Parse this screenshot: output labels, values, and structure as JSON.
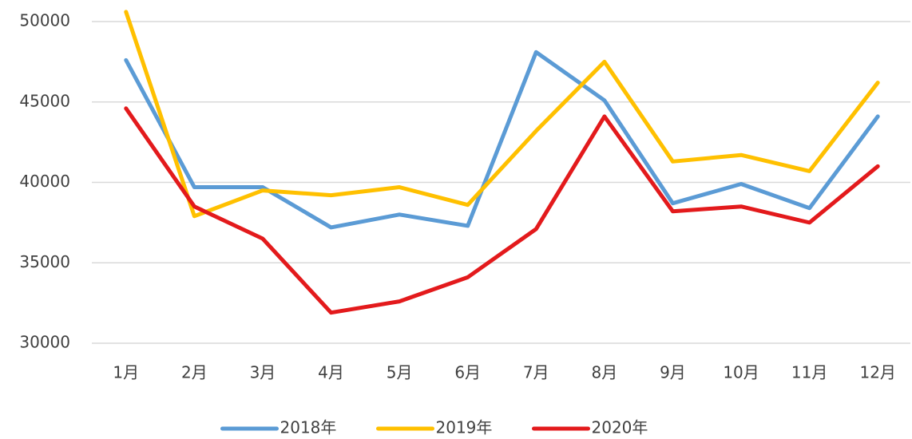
{
  "chart_data": {
    "type": "line",
    "categories": [
      "1月",
      "2月",
      "3月",
      "4月",
      "5月",
      "6月",
      "7月",
      "8月",
      "9月",
      "10月",
      "11月",
      "12月"
    ],
    "series": [
      {
        "name": "2018年",
        "color": "#5b9bd5",
        "values": [
          47600,
          39700,
          39700,
          37200,
          38000,
          37300,
          48100,
          45100,
          38700,
          39900,
          38400,
          44100
        ]
      },
      {
        "name": "2019年",
        "color": "#ffc000",
        "values": [
          50600,
          37900,
          39500,
          39200,
          39700,
          38600,
          43200,
          47500,
          41300,
          41700,
          40700,
          46200
        ]
      },
      {
        "name": "2020年",
        "color": "#e31a1c",
        "values": [
          44600,
          38500,
          36500,
          31900,
          32600,
          34100,
          37100,
          44100,
          38200,
          38500,
          37500,
          41000
        ]
      }
    ],
    "ylim": [
      30000,
      50000
    ],
    "yticks": [
      30000,
      35000,
      40000,
      45000,
      50000
    ],
    "grid": true,
    "legend": "bottom"
  }
}
